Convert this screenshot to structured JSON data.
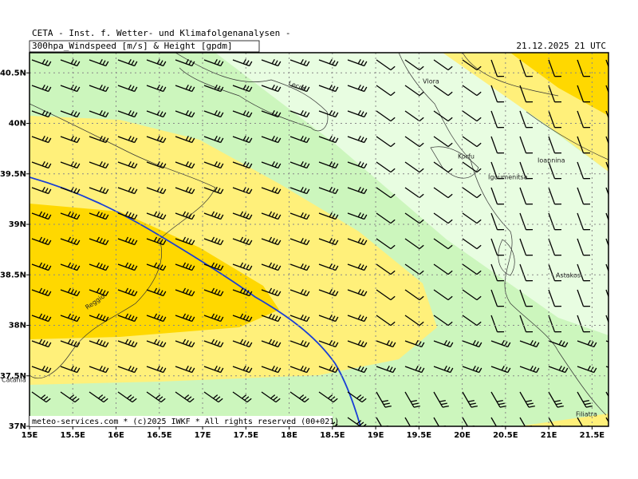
{
  "header": {
    "institute": "CETA - Inst. f. Wetter- und Klimafolgenanalysen -",
    "product": "300hpa_Windspeed [m/s] & Height [gpdm]",
    "valid": "21.12.2025 21 UTC"
  },
  "map": {
    "lonlim": [
      15,
      21.69
    ],
    "latlim": [
      37,
      40.7
    ],
    "lonticks": [
      {
        "value": 15,
        "label": "15E"
      },
      {
        "value": 15.5,
        "label": "15.5E"
      },
      {
        "value": 16,
        "label": "16E"
      },
      {
        "value": 16.5,
        "label": "16.5E"
      },
      {
        "value": 17,
        "label": "17E"
      },
      {
        "value": 17.5,
        "label": "17.5E"
      },
      {
        "value": 18,
        "label": "18E"
      },
      {
        "value": 18.5,
        "label": "18.5E"
      },
      {
        "value": 19,
        "label": "19E"
      },
      {
        "value": 19.5,
        "label": "19.5E"
      },
      {
        "value": 20,
        "label": "20E"
      },
      {
        "value": 20.5,
        "label": "20.5E"
      },
      {
        "value": 21,
        "label": "21E"
      },
      {
        "value": 21.5,
        "label": "21.5E"
      }
    ],
    "latticks": [
      {
        "value": 37,
        "label": "37N"
      },
      {
        "value": 37.5,
        "label": "37.5N"
      },
      {
        "value": 38,
        "label": "38N"
      },
      {
        "value": 38.5,
        "label": "38.5N"
      },
      {
        "value": 39,
        "label": "39N"
      },
      {
        "value": 39.5,
        "label": "39.5N"
      },
      {
        "value": 40,
        "label": "40N"
      },
      {
        "value": 40.5,
        "label": "40.5N"
      }
    ],
    "places": [
      "Lecce",
      "Vlora",
      "Korfu",
      "Igoumenitsa",
      "Ioannina",
      "Astakos",
      "Reggio",
      "Catania",
      "Filiatra"
    ]
  },
  "footer": "meteo-services.com * (c)2025 IWKF * All rights reserved (00+021)"
}
